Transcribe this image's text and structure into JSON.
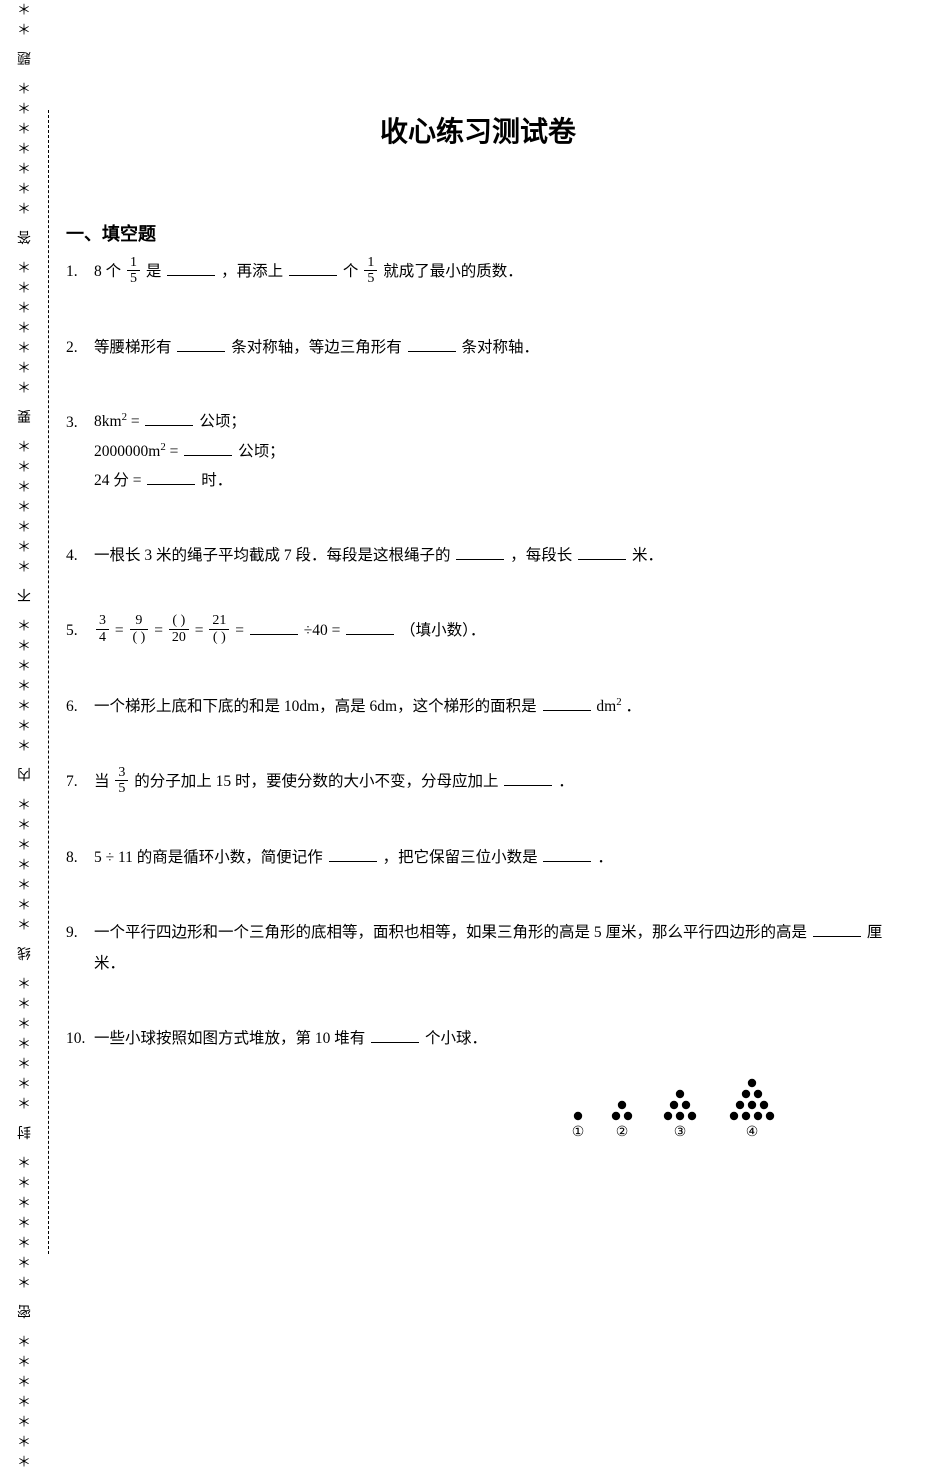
{
  "title": "收心练习测试卷",
  "sidebar_text": "＊＊＊＊＊＊＊ 密 ＊＊＊＊＊＊＊ 封 ＊＊＊＊＊＊＊ 线 ＊＊＊＊＊＊＊ 内 ＊＊＊＊＊＊＊ 不 ＊＊＊＊＊＊＊ 要 ＊＊＊＊＊＊＊ 答 ＊＊＊＊＊＊＊ 题 ＊＊＊＊＊＊＊",
  "section1": "一、填空题",
  "q": {
    "1": {
      "n": "1.",
      "a": "8 个",
      "b": "是",
      "c": "，再添上",
      "d": "个",
      "e": "就成了最小的质数．",
      "f1n": "1",
      "f1d": "5",
      "f2n": "1",
      "f2d": "5"
    },
    "2": {
      "n": "2.",
      "t1": "等腰梯形有",
      "t2": "条对称轴，等边三角形有",
      "t3": "条对称轴．"
    },
    "3": {
      "n": "3.",
      "l1a": "8km",
      "l1b": " =",
      "l1c": "公顷；",
      "l2a": "2000000m",
      "l2b": " =",
      "l2c": "公顷；",
      "l3a": "24 分 =",
      "l3b": "时．"
    },
    "4": {
      "n": "4.",
      "t1": "一根长 3 米的绳子平均截成 7 段．每段是这根绳子的",
      "t2": "，每段长",
      "t3": "米．"
    },
    "5": {
      "n": "5.",
      "f1n": "3",
      "f1d": "4",
      "f2n": "9",
      "f2d": "(   )",
      "f3n": "(   )",
      "f3d": "20",
      "f4n": "21",
      "f4d": "(   )",
      "eq": "=",
      "t1": "÷40 =",
      "t2": "（填小数）．"
    },
    "6": {
      "n": "6.",
      "t1": "一个梯形上底和下底的和是 10dm，高是 6dm，这个梯形的面积是",
      "t2": "dm",
      "t3": "．"
    },
    "7": {
      "n": "7.",
      "t1": "当",
      "fn": "3",
      "fd": "5",
      "t2": "的分子加上 15 时，要使分数的大小不变，分母应加上",
      "t3": "．"
    },
    "8": {
      "n": "8.",
      "t1": "5 ÷ 11 的商是循环小数，简便记作",
      "t2": "，把它保留三位小数是",
      "t3": "．"
    },
    "9": {
      "n": "9.",
      "t1": "一个平行四边形和一个三角形的底相等，面积也相等，如果三角形的高是 5 厘米，那么平行四边形的高是",
      "t2": "厘米．"
    },
    "10": {
      "n": "10.",
      "t1": "一些小球按照如图方式堆放，第 10 堆有",
      "t2": "个小球．",
      "labels": [
        "①",
        "②",
        "③",
        "④"
      ]
    }
  },
  "style": {
    "dot_color": "#000000",
    "dot_radius": 4.2
  }
}
